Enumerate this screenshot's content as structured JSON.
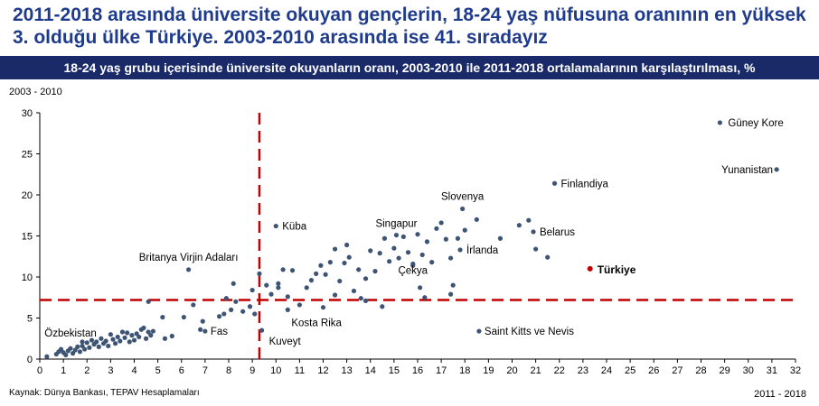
{
  "header": {
    "title": "2011-2018 arasında üniversite okuyan gençlerin, 18-24 yaş nüfusuna oranının en yüksek 3. olduğu ülke Türkiye. 2003-2010 arasında ise 41. sıradayız",
    "subtitle": "18-24 yaş grubu içerisinde üniversite okuyanların oranı, 2003-2010 ile 2011-2018 ortalamalarının karşılaştırılması, %"
  },
  "footer": {
    "source": "Kaynak: Dünya Bankası, TEPAV Hesaplamaları"
  },
  "colors": {
    "points": "#3d5475",
    "highlight": "#c00000",
    "reference": "#c00000",
    "banner": "#1a2a68",
    "title": "#1f3b8c"
  },
  "chart_data": {
    "type": "scatter",
    "title": "",
    "xlabel": "2011 - 2018",
    "ylabel": "2003 - 2010",
    "xlim": [
      0,
      32
    ],
    "ylim": [
      0,
      30
    ],
    "xticks": [
      0,
      1,
      2,
      3,
      4,
      5,
      6,
      7,
      8,
      9,
      10,
      11,
      12,
      13,
      14,
      15,
      16,
      17,
      18,
      19,
      20,
      21,
      22,
      23,
      24,
      25,
      26,
      27,
      28,
      29,
      30,
      31,
      32
    ],
    "yticks": [
      0,
      5,
      10,
      15,
      20,
      25,
      30
    ],
    "grid": false,
    "reference_lines": {
      "x": 9.3,
      "y": 7.2
    },
    "labeled_points": [
      {
        "label": "Güney Kore",
        "x": 28.8,
        "y": 28.8
      },
      {
        "label": "Yunanistan",
        "x": 31.2,
        "y": 23.1
      },
      {
        "label": "Finlandiya",
        "x": 21.8,
        "y": 21.4
      },
      {
        "label": "Slovenya",
        "x": 17.9,
        "y": 18.3
      },
      {
        "label": "Küba",
        "x": 10.0,
        "y": 16.2
      },
      {
        "label": "Singapur",
        "x": 15.1,
        "y": 15.1
      },
      {
        "label": "Belarus",
        "x": 20.9,
        "y": 15.5
      },
      {
        "label": "İrlanda",
        "x": 17.8,
        "y": 13.3
      },
      {
        "label": "Çekya",
        "x": 15.8,
        "y": 11.6
      },
      {
        "label": "Britanya Virjin Adaları",
        "x": 6.3,
        "y": 10.9
      },
      {
        "label": "Türkiye",
        "x": 23.3,
        "y": 11.0,
        "highlight": true
      },
      {
        "label": "Özbekistan",
        "x": 1.8,
        "y": 2.1
      },
      {
        "label": "Fas",
        "x": 7.0,
        "y": 3.4
      },
      {
        "label": "Kosta Rika",
        "x": 10.5,
        "y": 6.0
      },
      {
        "label": "Kuveyt",
        "x": 9.4,
        "y": 3.5
      },
      {
        "label": "Saint Kitts ve Nevis",
        "x": 18.6,
        "y": 3.4
      }
    ],
    "points": [
      [
        0.3,
        0.3
      ],
      [
        0.7,
        0.6
      ],
      [
        0.8,
        0.9
      ],
      [
        0.9,
        1.2
      ],
      [
        1.0,
        0.8
      ],
      [
        1.1,
        0.5
      ],
      [
        1.2,
        1.0
      ],
      [
        1.3,
        1.3
      ],
      [
        1.4,
        0.7
      ],
      [
        1.5,
        1.1
      ],
      [
        1.6,
        1.5
      ],
      [
        1.7,
        0.9
      ],
      [
        1.8,
        1.6
      ],
      [
        1.9,
        1.2
      ],
      [
        2.0,
        2.0
      ],
      [
        2.1,
        1.4
      ],
      [
        2.2,
        2.3
      ],
      [
        2.3,
        1.8
      ],
      [
        2.4,
        2.1
      ],
      [
        2.5,
        1.5
      ],
      [
        2.6,
        2.5
      ],
      [
        2.7,
        1.9
      ],
      [
        2.8,
        2.2
      ],
      [
        2.9,
        1.6
      ],
      [
        3.0,
        3.0
      ],
      [
        3.1,
        2.4
      ],
      [
        3.2,
        1.9
      ],
      [
        3.3,
        2.7
      ],
      [
        3.4,
        2.2
      ],
      [
        3.5,
        3.3
      ],
      [
        3.6,
        2.6
      ],
      [
        3.7,
        3.2
      ],
      [
        3.8,
        2.1
      ],
      [
        3.9,
        2.9
      ],
      [
        4.0,
        2.3
      ],
      [
        4.1,
        3.1
      ],
      [
        4.2,
        2.7
      ],
      [
        4.3,
        3.6
      ],
      [
        4.4,
        3.8
      ],
      [
        4.5,
        2.5
      ],
      [
        4.6,
        3.3
      ],
      [
        4.7,
        2.9
      ],
      [
        4.8,
        3.4
      ],
      [
        4.6,
        7.0
      ],
      [
        5.3,
        2.5
      ],
      [
        5.6,
        2.8
      ],
      [
        5.2,
        5.1
      ],
      [
        6.1,
        5.1
      ],
      [
        6.5,
        6.6
      ],
      [
        6.8,
        3.6
      ],
      [
        6.9,
        4.6
      ],
      [
        7.6,
        5.2
      ],
      [
        7.8,
        5.5
      ],
      [
        7.9,
        7.4
      ],
      [
        8.1,
        6.0
      ],
      [
        8.2,
        9.2
      ],
      [
        8.3,
        7.0
      ],
      [
        8.6,
        5.8
      ],
      [
        8.9,
        6.4
      ],
      [
        9.1,
        5.5
      ],
      [
        9.0,
        8.4
      ],
      [
        9.3,
        10.4
      ],
      [
        9.6,
        9.0
      ],
      [
        9.8,
        7.9
      ],
      [
        10.1,
        8.7
      ],
      [
        10.1,
        9.2
      ],
      [
        10.3,
        10.9
      ],
      [
        10.5,
        7.6
      ],
      [
        10.7,
        10.8
      ],
      [
        11.0,
        6.6
      ],
      [
        11.3,
        8.7
      ],
      [
        11.5,
        9.6
      ],
      [
        11.7,
        10.4
      ],
      [
        11.9,
        11.4
      ],
      [
        12.1,
        10.3
      ],
      [
        12.3,
        11.8
      ],
      [
        12.5,
        7.8
      ],
      [
        12.5,
        13.4
      ],
      [
        12.7,
        9.5
      ],
      [
        12.9,
        11.7
      ],
      [
        13.0,
        13.9
      ],
      [
        13.1,
        12.4
      ],
      [
        13.3,
        8.3
      ],
      [
        13.5,
        10.9
      ],
      [
        13.6,
        7.4
      ],
      [
        13.8,
        9.8
      ],
      [
        14.0,
        13.2
      ],
      [
        14.2,
        10.7
      ],
      [
        14.4,
        12.9
      ],
      [
        14.6,
        14.7
      ],
      [
        14.8,
        11.9
      ],
      [
        15.0,
        13.5
      ],
      [
        15.2,
        12.3
      ],
      [
        15.4,
        14.9
      ],
      [
        15.6,
        13.0
      ],
      [
        15.8,
        11.4
      ],
      [
        16.0,
        15.2
      ],
      [
        16.2,
        12.7
      ],
      [
        16.4,
        14.3
      ],
      [
        16.6,
        11.8
      ],
      [
        16.8,
        15.9
      ],
      [
        17.0,
        16.6
      ],
      [
        17.2,
        14.6
      ],
      [
        17.4,
        12.3
      ],
      [
        17.5,
        9.0
      ],
      [
        17.7,
        14.7
      ],
      [
        18.0,
        15.7
      ],
      [
        18.5,
        17.0
      ],
      [
        19.5,
        14.7
      ],
      [
        20.3,
        16.3
      ],
      [
        20.7,
        16.9
      ],
      [
        21.0,
        13.4
      ],
      [
        21.5,
        12.4
      ],
      [
        16.3,
        7.5
      ],
      [
        17.4,
        7.9
      ],
      [
        16.1,
        8.7
      ],
      [
        14.5,
        6.4
      ],
      [
        13.8,
        7.1
      ],
      [
        12.0,
        6.3
      ]
    ]
  }
}
